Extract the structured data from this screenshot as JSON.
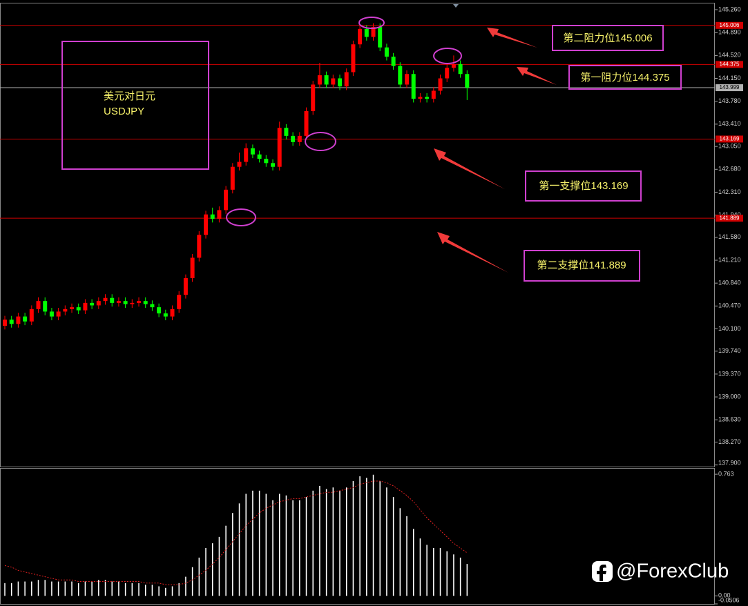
{
  "chart_data": [
    {
      "type": "candlestick",
      "up_color": "#ff0000",
      "down_color": "#00ff00",
      "ylim": [
        137.874,
        145.372
      ],
      "yticks": [
        {
          "value": 145.26,
          "label": "145.260"
        },
        {
          "value": 144.89,
          "label": "144.890"
        },
        {
          "value": 144.52,
          "label": "144.520"
        },
        {
          "value": 144.15,
          "label": "144.150"
        },
        {
          "value": 143.78,
          "label": "143.780"
        },
        {
          "value": 143.41,
          "label": "143.410"
        },
        {
          "value": 143.05,
          "label": "143.050"
        },
        {
          "value": 142.68,
          "label": "142.680"
        },
        {
          "value": 142.31,
          "label": "142.310"
        },
        {
          "value": 141.94,
          "label": "141.940"
        },
        {
          "value": 141.58,
          "label": "141.580"
        },
        {
          "value": 141.21,
          "label": "141.210"
        },
        {
          "value": 140.84,
          "label": "140.840"
        },
        {
          "value": 140.47,
          "label": "140.470"
        },
        {
          "value": 140.1,
          "label": "140.100"
        },
        {
          "value": 139.74,
          "label": "139.740"
        },
        {
          "value": 139.37,
          "label": "139.370"
        },
        {
          "value": 139.0,
          "label": "139.000"
        },
        {
          "value": 138.63,
          "label": "138.630"
        },
        {
          "value": 138.27,
          "label": "138.270"
        },
        {
          "value": 137.9,
          "label": "137.900"
        }
      ],
      "open": [
        140.15,
        140.25,
        140.18,
        140.3,
        140.22,
        140.42,
        140.55,
        140.38,
        140.3,
        140.38,
        140.42,
        140.45,
        140.4,
        140.52,
        140.48,
        140.55,
        140.6,
        140.52,
        140.55,
        140.5,
        140.52,
        140.55,
        140.5,
        140.45,
        140.35,
        140.3,
        140.42,
        140.65,
        140.92,
        141.25,
        141.62,
        141.95,
        141.88,
        142.02,
        142.35,
        142.72,
        142.8,
        143.02,
        142.92,
        142.85,
        142.78,
        142.72,
        143.35,
        143.22,
        143.12,
        143.22,
        143.62,
        144.05,
        144.2,
        144.05,
        144.15,
        144.02,
        144.25,
        144.7,
        144.95,
        144.82,
        144.98,
        144.65,
        144.5,
        144.35,
        144.05,
        144.22,
        143.82,
        143.85,
        143.82,
        143.95,
        144.15,
        144.32,
        144.38,
        144.22
      ],
      "high": [
        140.31,
        140.31,
        140.36,
        140.36,
        140.48,
        140.61,
        140.61,
        140.44,
        140.44,
        140.48,
        140.51,
        140.51,
        140.58,
        140.58,
        140.61,
        140.66,
        140.66,
        140.61,
        140.61,
        140.58,
        140.61,
        140.61,
        140.56,
        140.51,
        140.41,
        140.48,
        140.71,
        140.98,
        141.31,
        141.68,
        142.01,
        142.06,
        142.08,
        142.41,
        142.78,
        142.95,
        143.1,
        143.08,
        142.98,
        142.91,
        142.84,
        143.45,
        143.41,
        143.28,
        143.28,
        143.68,
        144.11,
        144.4,
        144.26,
        144.21,
        144.21,
        144.31,
        144.76,
        145.01,
        145.01,
        145.04,
        145.04,
        144.71,
        144.56,
        144.41,
        144.28,
        144.28,
        143.91,
        143.91,
        144.01,
        144.21,
        144.38,
        144.52,
        144.44,
        144.28
      ],
      "low": [
        140.09,
        140.12,
        140.12,
        140.16,
        140.16,
        140.36,
        140.32,
        140.24,
        140.24,
        140.32,
        140.36,
        140.34,
        140.34,
        140.42,
        140.42,
        140.49,
        140.46,
        140.46,
        140.44,
        140.44,
        140.46,
        140.44,
        140.39,
        140.29,
        140.24,
        140.24,
        140.36,
        140.59,
        140.86,
        141.19,
        141.56,
        141.82,
        141.82,
        141.96,
        142.29,
        142.66,
        142.74,
        142.86,
        142.79,
        142.72,
        142.66,
        142.66,
        143.16,
        143.06,
        143.06,
        143.16,
        143.56,
        143.99,
        143.99,
        143.99,
        143.96,
        143.96,
        144.19,
        144.64,
        144.76,
        144.76,
        144.59,
        144.44,
        144.29,
        143.99,
        143.99,
        143.76,
        143.76,
        143.76,
        143.76,
        143.89,
        144.09,
        144.26,
        144.16,
        143.8
      ],
      "close": [
        140.25,
        140.18,
        140.3,
        140.22,
        140.42,
        140.55,
        140.38,
        140.3,
        140.38,
        140.42,
        140.45,
        140.4,
        140.52,
        140.48,
        140.55,
        140.6,
        140.52,
        140.55,
        140.5,
        140.52,
        140.55,
        140.5,
        140.45,
        140.35,
        140.3,
        140.42,
        140.65,
        140.92,
        141.25,
        141.62,
        141.95,
        141.88,
        142.02,
        142.35,
        142.72,
        142.8,
        143.02,
        142.92,
        142.85,
        142.78,
        142.72,
        143.35,
        143.22,
        143.12,
        143.22,
        143.62,
        144.05,
        144.2,
        144.05,
        144.15,
        144.02,
        144.25,
        144.7,
        144.95,
        144.82,
        144.98,
        144.65,
        144.5,
        144.35,
        144.05,
        144.22,
        143.82,
        143.85,
        143.82,
        143.95,
        144.15,
        144.32,
        144.38,
        144.22,
        144.0
      ],
      "levels": [
        {
          "value": 145.006,
          "color": "#d00000"
        },
        {
          "value": 144.375,
          "color": "#d00000"
        },
        {
          "value": 143.999,
          "color": "#b0b0b0"
        },
        {
          "value": 143.169,
          "color": "#d00000"
        },
        {
          "value": 141.889,
          "color": "#d00000"
        }
      ],
      "annotations": [
        "美元对日元",
        "USDJPY",
        "第二阻力位145.006",
        "第一阻力位144.375",
        "第一支撑位143.169",
        "第二支撑位141.889"
      ]
    },
    {
      "type": "bar",
      "ylim": [
        -0.0506,
        0.798
      ],
      "yticks": [
        0.763,
        {
          "value": 0,
          "label": "0.00"
        },
        -0.0506
      ],
      "series": [
        {
          "type": "bar",
          "color": "#ffffff",
          "values": [
            0.08,
            0.08,
            0.09,
            0.09,
            0.09,
            0.1,
            0.1,
            0.09,
            0.09,
            0.09,
            0.09,
            0.08,
            0.09,
            0.09,
            0.1,
            0.1,
            0.09,
            0.09,
            0.08,
            0.08,
            0.08,
            0.07,
            0.07,
            0.06,
            0.05,
            0.06,
            0.08,
            0.12,
            0.18,
            0.24,
            0.3,
            0.33,
            0.37,
            0.44,
            0.52,
            0.58,
            0.64,
            0.66,
            0.66,
            0.64,
            0.6,
            0.64,
            0.63,
            0.6,
            0.6,
            0.62,
            0.66,
            0.69,
            0.67,
            0.68,
            0.66,
            0.68,
            0.72,
            0.75,
            0.74,
            0.76,
            0.72,
            0.68,
            0.62,
            0.55,
            0.5,
            0.42,
            0.36,
            0.32,
            0.3,
            0.3,
            0.28,
            0.26,
            0.24,
            0.2
          ]
        },
        {
          "type": "line",
          "color": "#e02020",
          "dashed": true,
          "values": [
            0.19,
            0.18,
            0.16,
            0.15,
            0.14,
            0.13,
            0.12,
            0.11,
            0.1,
            0.1,
            0.1,
            0.09,
            0.09,
            0.09,
            0.09,
            0.09,
            0.09,
            0.09,
            0.09,
            0.09,
            0.09,
            0.08,
            0.08,
            0.08,
            0.07,
            0.07,
            0.07,
            0.08,
            0.1,
            0.13,
            0.16,
            0.2,
            0.24,
            0.29,
            0.34,
            0.39,
            0.44,
            0.48,
            0.52,
            0.55,
            0.57,
            0.59,
            0.6,
            0.61,
            0.61,
            0.62,
            0.63,
            0.64,
            0.65,
            0.65,
            0.66,
            0.67,
            0.68,
            0.7,
            0.71,
            0.72,
            0.72,
            0.71,
            0.69,
            0.66,
            0.63,
            0.59,
            0.54,
            0.49,
            0.45,
            0.41,
            0.37,
            0.33,
            0.3,
            0.27
          ]
        }
      ]
    }
  ],
  "watermark": "@ForexClub"
}
